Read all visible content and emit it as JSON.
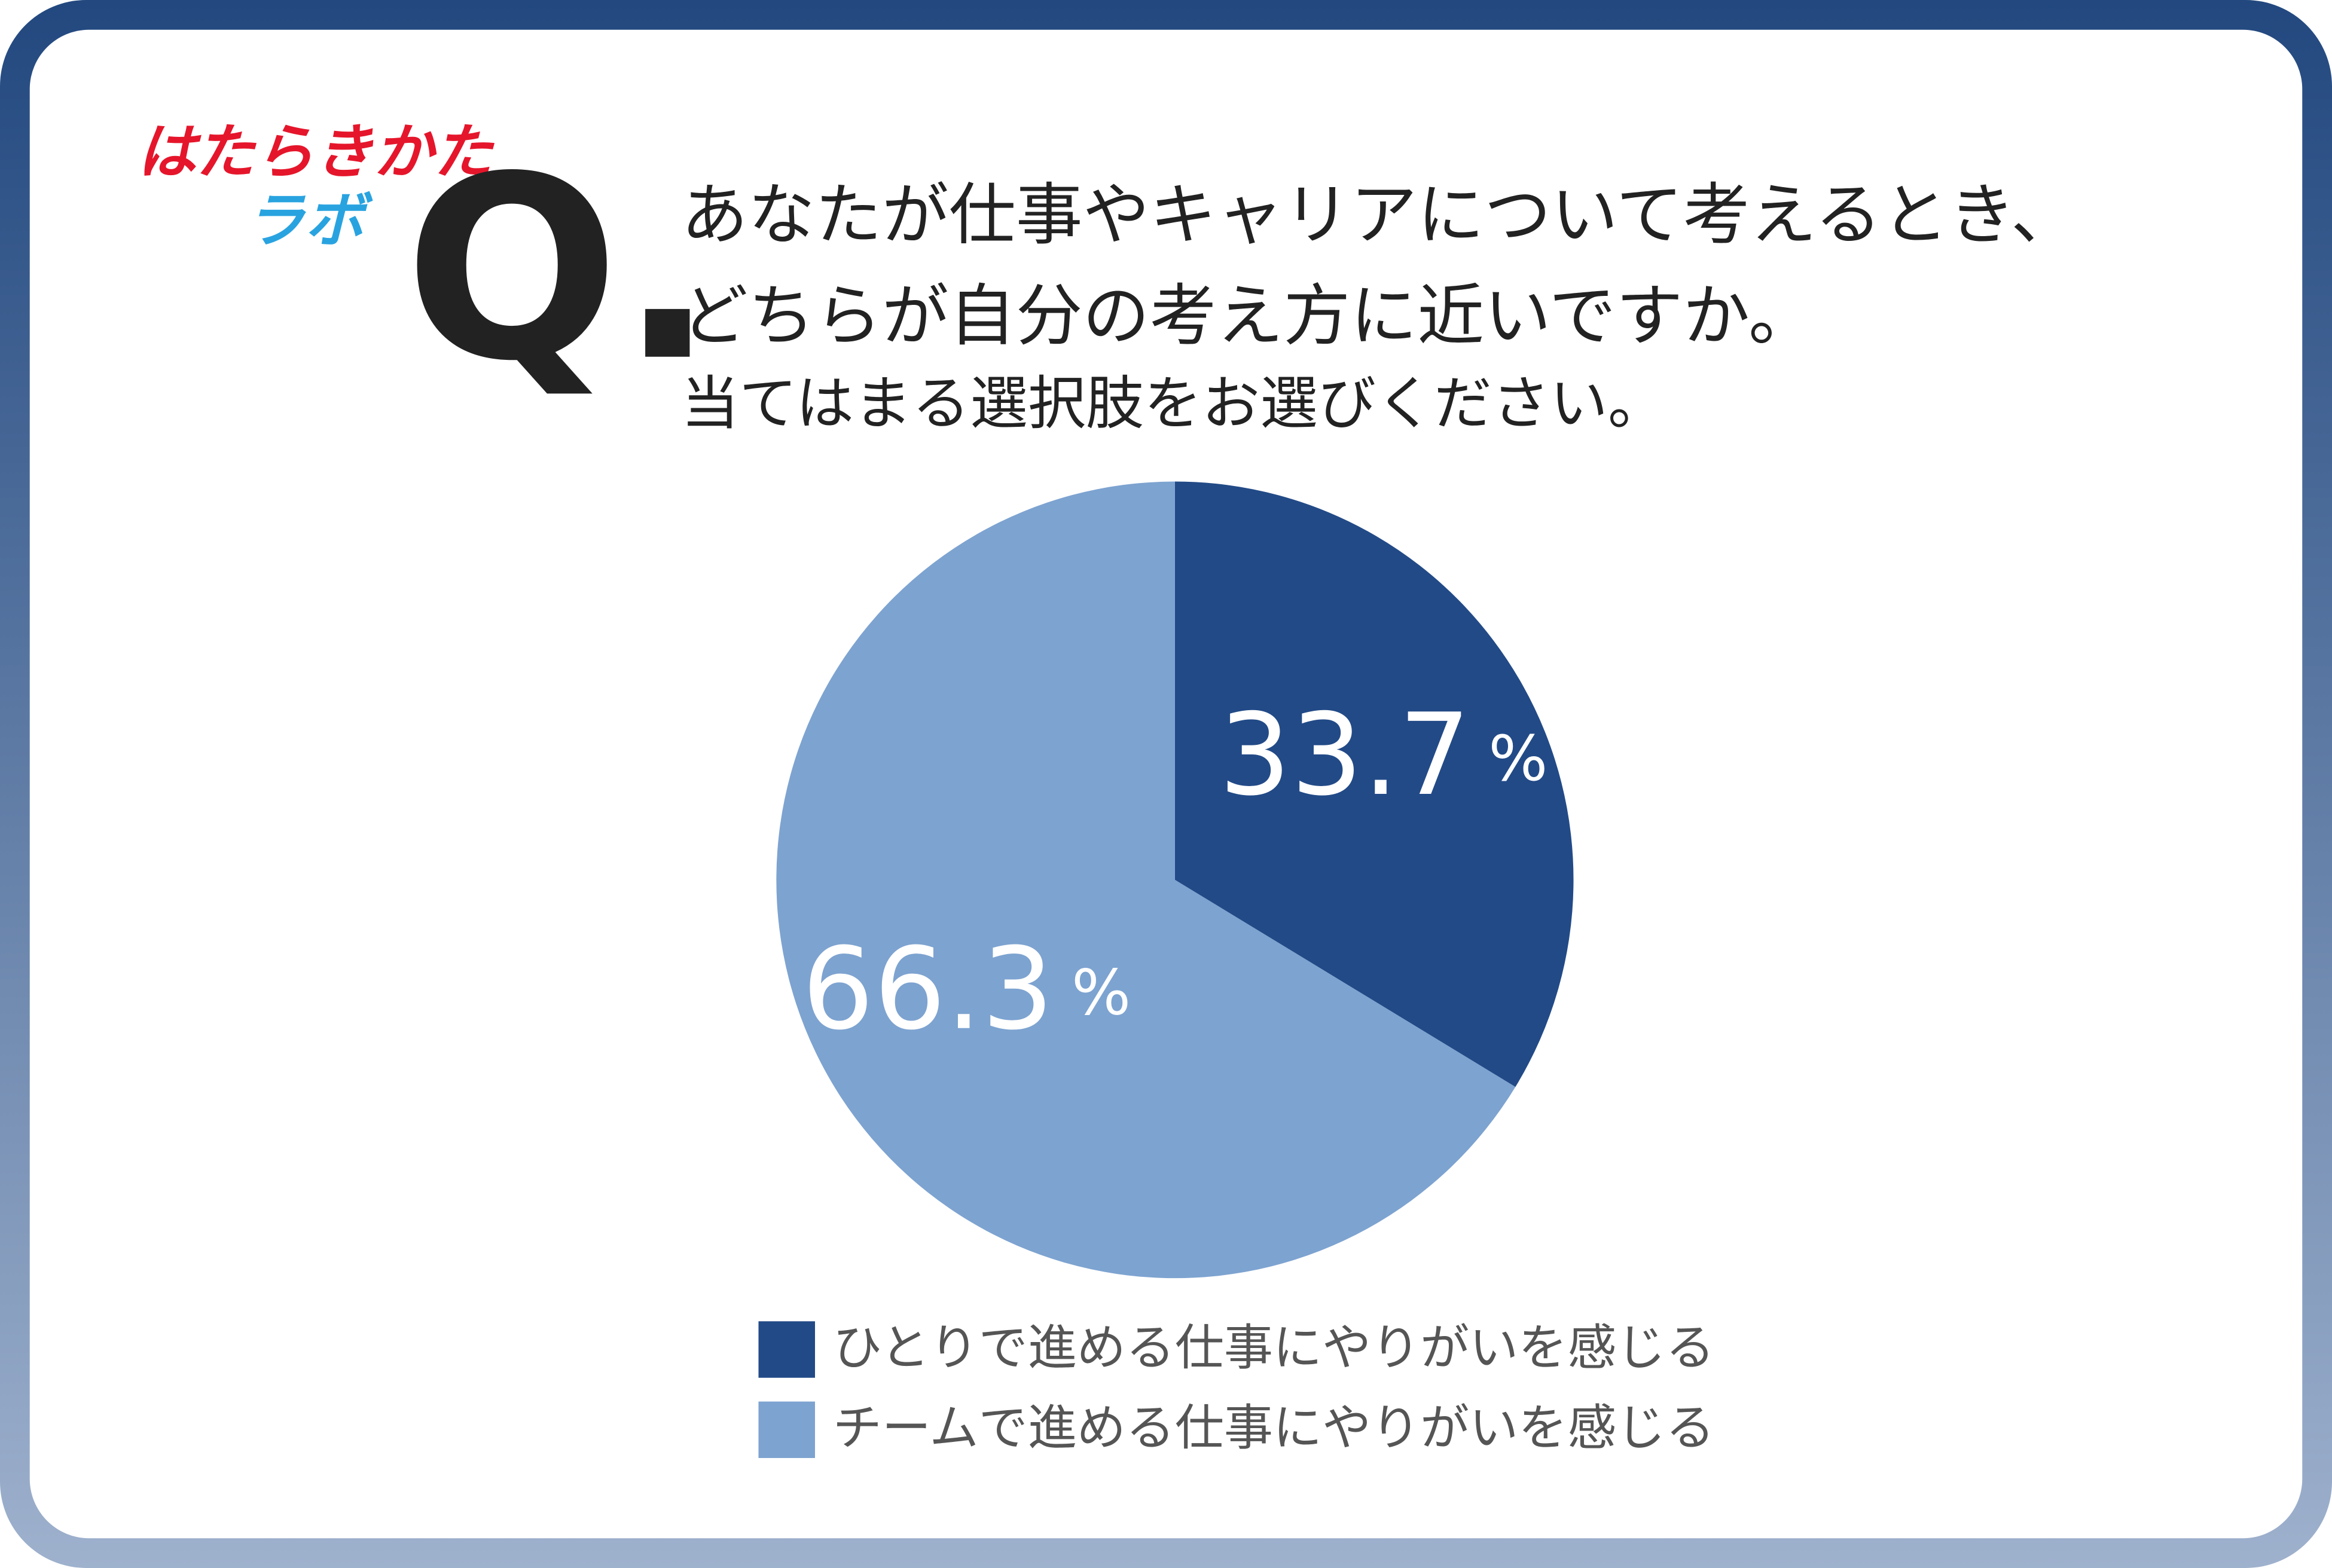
{
  "logo": [
    "はたらきかた",
    "ラボ"
  ],
  "chart_data": {
    "type": "pie",
    "title": "Q.",
    "subtitle": [
      "あなたが仕事やキャリアについて考えるとき、",
      "どちらが自分の考え方に近いですか。",
      "当てはまる選択肢をお選びください。"
    ],
    "categories": [
      "ひとりで進める仕事にやりがいを感じる",
      "チームで進める仕事にやりがいを感じる"
    ],
    "values": [
      33.7,
      66.3
    ],
    "value_labels": [
      "33.7%",
      "66.3%"
    ],
    "colors": [
      "#224a87",
      "#7da3d0"
    ]
  }
}
